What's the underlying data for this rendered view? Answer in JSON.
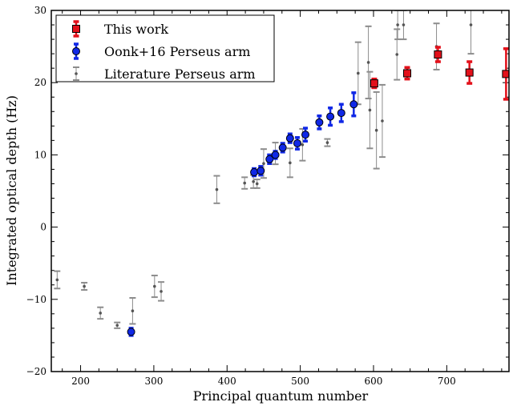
{
  "chart_data": {
    "type": "scatter",
    "title": "",
    "xlabel": "Principal quantum number",
    "ylabel": "Integrated optical depth (Hz)",
    "xlim": [
      160,
      785
    ],
    "ylim": [
      -20,
      30
    ],
    "xticks": [
      200,
      300,
      400,
      500,
      600,
      700
    ],
    "yticks": [
      -20,
      -10,
      0,
      10,
      20,
      30
    ],
    "grid": false,
    "legend_position": "top-left",
    "series": [
      {
        "name": "This work",
        "marker": "square",
        "color": "#e3101a",
        "points": [
          {
            "x": 601,
            "y": 19.9,
            "err": 0.6
          },
          {
            "x": 646,
            "y": 21.3,
            "err": 0.8
          },
          {
            "x": 688,
            "y": 23.9,
            "err": 1.0
          },
          {
            "x": 731,
            "y": 21.4,
            "err": 1.5
          },
          {
            "x": 781,
            "y": 21.2,
            "err": 3.5
          }
        ]
      },
      {
        "name": "Oonk+16 Perseus arm",
        "marker": "circle",
        "color": "#1028e6",
        "points": [
          {
            "x": 269,
            "y": -14.5,
            "err": 0.5
          },
          {
            "x": 437,
            "y": 7.6,
            "err": 0.5
          },
          {
            "x": 446,
            "y": 7.8,
            "err": 0.6
          },
          {
            "x": 458,
            "y": 9.4,
            "err": 0.6
          },
          {
            "x": 466,
            "y": 10.0,
            "err": 0.5
          },
          {
            "x": 476,
            "y": 11.0,
            "err": 0.6
          },
          {
            "x": 486,
            "y": 12.3,
            "err": 0.6
          },
          {
            "x": 496,
            "y": 11.6,
            "err": 0.8
          },
          {
            "x": 507,
            "y": 12.8,
            "err": 0.9
          },
          {
            "x": 526,
            "y": 14.5,
            "err": 0.9
          },
          {
            "x": 541,
            "y": 15.3,
            "err": 1.2
          },
          {
            "x": 556,
            "y": 15.8,
            "err": 1.2
          },
          {
            "x": 573,
            "y": 17.0,
            "err": 1.6
          }
        ]
      },
      {
        "name": "Literature Perseus arm",
        "marker": "dot",
        "color": "#8c8c8c",
        "points": [
          {
            "x": 168,
            "y": -7.3,
            "err": 1.2
          },
          {
            "x": 205,
            "y": -8.2,
            "err": 0.5
          },
          {
            "x": 227,
            "y": -11.9,
            "err": 0.8
          },
          {
            "x": 250,
            "y": -13.6,
            "err": 0.4
          },
          {
            "x": 271,
            "y": -11.6,
            "err": 1.8
          },
          {
            "x": 301,
            "y": -8.2,
            "err": 1.5
          },
          {
            "x": 310,
            "y": -8.9,
            "err": 1.3
          },
          {
            "x": 386,
            "y": 5.2,
            "err": 1.9
          },
          {
            "x": 424,
            "y": 6.1,
            "err": 0.8
          },
          {
            "x": 436,
            "y": 6.3,
            "err": 0.9
          },
          {
            "x": 441,
            "y": 6.0,
            "err": 0.6
          },
          {
            "x": 450,
            "y": 8.8,
            "err": 2.0
          },
          {
            "x": 466,
            "y": 10.2,
            "err": 1.5
          },
          {
            "x": 486,
            "y": 8.9,
            "err": 2.0
          },
          {
            "x": 503,
            "y": 11.4,
            "err": 2.2
          },
          {
            "x": 537,
            "y": 11.7,
            "err": 0.5
          },
          {
            "x": 579,
            "y": 21.3,
            "err": 4.3
          },
          {
            "x": 593,
            "y": 22.8,
            "err": 5.0
          },
          {
            "x": 595,
            "y": 16.2,
            "err": 5.3
          },
          {
            "x": 604,
            "y": 13.4,
            "err": 5.3
          },
          {
            "x": 612,
            "y": 14.7,
            "err": 5.0
          },
          {
            "x": 632,
            "y": 23.9,
            "err": 3.5
          },
          {
            "x": 633,
            "y": 28.0,
            "err": 2.0
          },
          {
            "x": 641,
            "y": 28.0,
            "err": 2.0
          },
          {
            "x": 686,
            "y": 25.0,
            "err": 3.2
          },
          {
            "x": 733,
            "y": 28.0,
            "err": 4.0
          }
        ]
      }
    ]
  }
}
